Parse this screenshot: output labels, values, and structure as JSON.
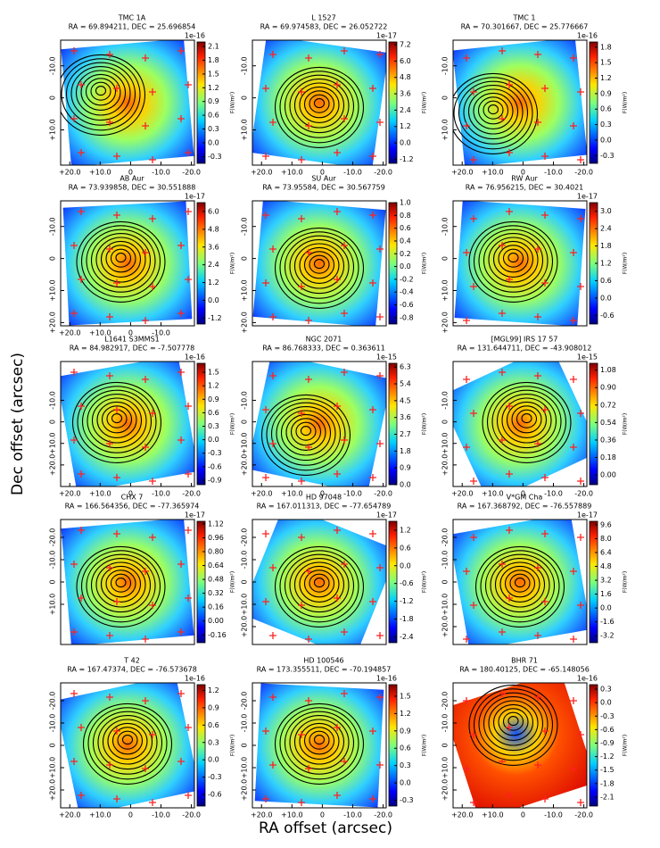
{
  "figure": {
    "xlabel": "RA offset (arcsec)",
    "ylabel": "Dec offset (arcsec)"
  },
  "chart_data": [
    {
      "type": "contour",
      "title": "TMC 1A",
      "subtitle": "RA = 69.894211, DEC = 25.696854",
      "cbar_label": "F(W/m²)",
      "cbar_multiplier": "1e-16",
      "clim": [
        -0.45,
        2.2
      ],
      "cticks": [
        2.1,
        1.8,
        1.5,
        1.2,
        0.9,
        0.6,
        0.3,
        {
          "value": 0,
          "label": "0.0"
        },
        -0.3
      ],
      "xlim": [
        23,
        -21
      ],
      "ylim": [
        -18,
        21
      ],
      "xticks": [
        {
          "value": 20,
          "label": "+20.0"
        },
        {
          "value": 10,
          "label": "+10.0"
        },
        0,
        {
          "value": -10,
          "label": "-10.0"
        },
        {
          "value": -20,
          "label": "-20.0"
        }
      ],
      "yticks": [
        {
          "value": -10,
          "label": "-10.0"
        },
        0,
        {
          "value": 10,
          "label": "+10.0"
        }
      ]
    },
    {
      "type": "contour",
      "title": "L 1527",
      "subtitle": "RA = 69.974583, DEC = 26.052722",
      "cbar_label": "F(W/m²)",
      "cbar_multiplier": "1e-17",
      "clim": [
        -1.5,
        7.4
      ],
      "cticks": [
        7.2,
        {
          "value": 6,
          "label": "6.0"
        },
        4.8,
        3.6,
        2.4,
        1.2,
        {
          "value": 0,
          "label": "0.0"
        },
        -1.2
      ],
      "xlim": [
        23,
        -21
      ],
      "ylim": [
        -18,
        21
      ],
      "xticks": [
        {
          "value": 20,
          "label": "+20.0"
        },
        {
          "value": 10,
          "label": "+10.0"
        },
        0,
        {
          "value": -10,
          "label": "-10.0"
        },
        {
          "value": -20,
          "label": "-20.0"
        }
      ],
      "yticks": [
        {
          "value": -10,
          "label": "-10.0"
        },
        0,
        {
          "value": 10,
          "label": "+10.0"
        }
      ]
    },
    {
      "type": "contour",
      "title": "TMC 1",
      "subtitle": "RA = 70.301667, DEC = 25.776667",
      "cbar_label": "F(W/m²)",
      "cbar_multiplier": "1e-16",
      "clim": [
        -0.45,
        1.9
      ],
      "cticks": [
        1.8,
        1.5,
        1.2,
        0.9,
        0.6,
        0.3,
        {
          "value": 0,
          "label": "0.0"
        },
        -0.3
      ],
      "xlim": [
        23,
        -21
      ],
      "ylim": [
        -18,
        21
      ],
      "xticks": [
        {
          "value": 20,
          "label": "+20.0"
        },
        {
          "value": 10,
          "label": "+10.0"
        },
        0,
        {
          "value": -10,
          "label": "-10.0"
        },
        {
          "value": -20,
          "label": "-20.0"
        }
      ],
      "yticks": [
        {
          "value": -10,
          "label": "-10.0"
        },
        0,
        {
          "value": 10,
          "label": "+10.0"
        }
      ]
    },
    {
      "type": "contour",
      "title": "AB Aur",
      "subtitle": "RA = 73.939858, DEC = 30.551888",
      "cbar_label": "F(W/m²)",
      "cbar_multiplier": "1e-17",
      "clim": [
        -1.6,
        6.6
      ],
      "cticks": [
        {
          "value": 6,
          "label": "6.0"
        },
        4.8,
        3.6,
        2.4,
        1.2,
        {
          "value": 0,
          "label": "0.0"
        },
        -1.2
      ],
      "xlim": [
        23,
        -21
      ],
      "ylim": [
        -18,
        21
      ],
      "xticks": [
        {
          "value": 20,
          "label": "+20.0"
        },
        {
          "value": 10,
          "label": "+10.0"
        },
        0,
        {
          "value": -10,
          "label": "-10.0"
        }
      ],
      "yticks": [
        {
          "value": -10,
          "label": "-10.0"
        },
        0,
        {
          "value": 10,
          "label": "+10.0"
        },
        {
          "value": 20,
          "label": "+20.0"
        }
      ]
    },
    {
      "type": "contour",
      "title": "SU Aur",
      "subtitle": "RA = 73.95584, DEC = 30.567759",
      "cbar_label": "F(W/m²)",
      "clim": [
        -0.9,
        1.0
      ],
      "cticks": [
        {
          "value": 1,
          "label": "1.0"
        },
        0.8,
        0.6,
        0.4,
        0.2,
        {
          "value": 0,
          "label": "0.0"
        },
        -0.2,
        -0.4,
        -0.6,
        -0.8
      ],
      "xlim": [
        23,
        -21
      ],
      "ylim": [
        -18,
        21
      ],
      "xticks": [],
      "yticks": [
        {
          "value": -10,
          "label": "-10.0"
        },
        0,
        {
          "value": 10,
          "label": "+10.0"
        },
        {
          "value": 20,
          "label": "+20.0"
        }
      ]
    },
    {
      "type": "contour",
      "title": "RW Aur",
      "subtitle": "RA = 76.956215, DEC = 30.4021",
      "cbar_label": "F(W/m²)",
      "cbar_multiplier": "1e-17",
      "clim": [
        -0.9,
        3.3
      ],
      "cticks": [
        {
          "value": 3,
          "label": "3.0"
        },
        2.4,
        1.8,
        1.2,
        0.6,
        {
          "value": 0,
          "label": "0.0"
        },
        -0.6
      ],
      "xlim": [
        23,
        -21
      ],
      "ylim": [
        -18,
        21
      ],
      "xticks": [],
      "yticks": [
        {
          "value": -10,
          "label": "-10.0"
        },
        0,
        {
          "value": 10,
          "label": "+10.0"
        },
        {
          "value": 20,
          "label": "+20.0"
        }
      ]
    },
    {
      "type": "contour",
      "title": "L1641 S3MMS1",
      "subtitle": "RA = 84.982917, DEC = -7.507778",
      "cbar_label": "F(W/m²)",
      "cbar_multiplier": "1e-16",
      "clim": [
        -1.0,
        1.7
      ],
      "cticks": [
        1.5,
        1.2,
        0.9,
        0.6,
        0.3,
        {
          "value": 0,
          "label": "0.0"
        },
        -0.3,
        -0.6,
        -0.9
      ],
      "xlim": [
        23,
        -21
      ],
      "ylim": [
        -28,
        30
      ],
      "xticks": [
        {
          "value": 20,
          "label": "+20.0"
        },
        {
          "value": 10,
          "label": "+10.0"
        },
        0,
        {
          "value": -10,
          "label": "-10.0"
        },
        {
          "value": -20,
          "label": "-20.0"
        }
      ],
      "yticks": [
        {
          "value": -10,
          "label": "-10.0"
        },
        0,
        {
          "value": 10,
          "label": "+10.0"
        },
        {
          "value": 20,
          "label": "+20.0"
        }
      ]
    },
    {
      "type": "contour",
      "title": "NGC 2071",
      "subtitle": "RA = 86.768333, DEC = 0.363611",
      "cbar_label": "F(W/m²)",
      "cbar_multiplier": "1e-15",
      "clim": [
        0,
        6.5
      ],
      "cticks": [
        6.3,
        5.4,
        4.5,
        3.6,
        2.7,
        1.8,
        0.9,
        {
          "value": 0,
          "label": "0.0"
        }
      ],
      "xlim": [
        23,
        -21
      ],
      "ylim": [
        -28,
        30
      ],
      "xticks": [
        {
          "value": 20,
          "label": "+20.0"
        },
        {
          "value": 10,
          "label": "+10.0"
        },
        0,
        {
          "value": -10,
          "label": "-10.0"
        },
        {
          "value": -20,
          "label": "-20.0"
        }
      ],
      "yticks": [
        {
          "value": -10,
          "label": "-10.0"
        },
        0,
        {
          "value": 10,
          "label": "+10.0"
        },
        {
          "value": 20,
          "label": "+20.0"
        }
      ]
    },
    {
      "type": "contour",
      "title": "[MGL99] IRS 17 57",
      "subtitle": "RA = 131.644711, DEC = -43.908012",
      "cbar_label": "F(W/m²)",
      "cbar_multiplier": "1e-15",
      "clim": [
        -0.1,
        1.15
      ],
      "cticks": [
        1.08,
        {
          "value": 0.9,
          "label": "0.90"
        },
        0.72,
        0.54,
        0.36,
        0.18,
        {
          "value": 0,
          "label": "0.00"
        }
      ],
      "xlim": [
        23,
        -21
      ],
      "ylim": [
        -28,
        30
      ],
      "xticks": [
        {
          "value": 20,
          "label": "+20.0"
        },
        {
          "value": 10,
          "label": "+10.0"
        },
        0,
        {
          "value": -10,
          "label": "-10.0"
        },
        {
          "value": -20,
          "label": "-20.0"
        }
      ],
      "yticks": [
        {
          "value": -10,
          "label": "-10.0"
        },
        0,
        {
          "value": 10,
          "label": "+10.0"
        },
        {
          "value": 20,
          "label": "+20.0"
        }
      ]
    },
    {
      "type": "contour",
      "title": "CHX 7",
      "subtitle": "RA = 166.564356, DEC = -77.365974",
      "cbar_label": "F(W/m²)",
      "cbar_multiplier": "1e-17",
      "clim": [
        -0.25,
        1.15
      ],
      "cticks": [
        1.12,
        0.96,
        {
          "value": 0.8,
          "label": "0.80"
        },
        0.64,
        0.48,
        0.32,
        0.16,
        {
          "value": 0,
          "label": "0.00"
        },
        -0.16
      ],
      "xlim": [
        23,
        -21
      ],
      "ylim": [
        -28,
        28
      ],
      "xticks": [],
      "yticks": [
        {
          "value": -20,
          "label": "-20.0"
        },
        {
          "value": -10,
          "label": "-10.0"
        },
        0,
        {
          "value": 10,
          "label": "+10.0"
        }
      ]
    },
    {
      "type": "contour",
      "title": "HD 97048",
      "subtitle": "RA = 167.011313, DEC = -77.654789",
      "cbar_label": "F(W/m²)",
      "cbar_multiplier": "1e-17",
      "clim": [
        -2.6,
        1.5
      ],
      "cticks": [
        1.2,
        0.6,
        {
          "value": 0,
          "label": "0.0"
        },
        -0.6,
        -1.2,
        -1.8,
        -2.4
      ],
      "xlim": [
        23,
        -21
      ],
      "ylim": [
        -28,
        28
      ],
      "xticks": [],
      "yticks": [
        {
          "value": -20,
          "label": "-20.0"
        },
        {
          "value": -10,
          "label": "-10.0"
        },
        0,
        {
          "value": 10,
          "label": "+10.0"
        },
        {
          "value": 20,
          "label": "+20.0"
        }
      ]
    },
    {
      "type": "contour",
      "title": "V*GM Cha",
      "subtitle": "RA = 167.368792, DEC = -76.557889",
      "cbar_label": "F(W/m²)",
      "cbar_multiplier": "1e-17",
      "clim": [
        -4.0,
        10.0
      ],
      "cticks": [
        9.6,
        {
          "value": 8,
          "label": "8.0"
        },
        6.4,
        4.8,
        3.2,
        1.6,
        {
          "value": 0,
          "label": "0.0"
        },
        -1.6,
        -3.2
      ],
      "xlim": [
        23,
        -21
      ],
      "ylim": [
        -28,
        28
      ],
      "xticks": [],
      "yticks": [
        {
          "value": -20,
          "label": "-20.0"
        },
        {
          "value": -10,
          "label": "-10.0"
        },
        0,
        {
          "value": 10,
          "label": "+10.0"
        },
        {
          "value": 20,
          "label": "+20.0"
        }
      ]
    },
    {
      "type": "contour",
      "title": "T 42",
      "subtitle": "RA = 167.47374, DEC = -76.573678",
      "cbar_label": "F(W/m²)",
      "cbar_multiplier": "1e-16",
      "clim": [
        -0.8,
        1.3
      ],
      "cticks": [
        1.2,
        0.9,
        0.6,
        0.3,
        {
          "value": 0,
          "label": "0.0"
        },
        -0.3,
        -0.6
      ],
      "xlim": [
        23,
        -21
      ],
      "ylim": [
        -28,
        28
      ],
      "xticks": [
        {
          "value": 20,
          "label": "+20.0"
        },
        {
          "value": 10,
          "label": "+10.0"
        },
        0,
        {
          "value": -10,
          "label": "-10.0"
        },
        {
          "value": -20,
          "label": "-20.0"
        }
      ],
      "yticks": [
        {
          "value": -20,
          "label": "-20.0"
        },
        {
          "value": -10,
          "label": "-10.0"
        },
        0,
        {
          "value": 10,
          "label": "+10.0"
        },
        {
          "value": 20,
          "label": "+20.0"
        }
      ]
    },
    {
      "type": "contour",
      "title": "HD 100546",
      "subtitle": "RA = 173.355511, DEC = -70.194857",
      "cbar_label": "F(W/m²)",
      "cbar_multiplier": "1e-16",
      "clim": [
        -0.4,
        1.7
      ],
      "cticks": [
        1.5,
        1.2,
        0.9,
        0.6,
        0.3,
        {
          "value": 0,
          "label": "0.0"
        },
        -0.3
      ],
      "xlim": [
        23,
        -21
      ],
      "ylim": [
        -28,
        28
      ],
      "xticks": [
        {
          "value": 20,
          "label": "+20.0"
        },
        {
          "value": 10,
          "label": "+10.0"
        },
        0,
        {
          "value": -10,
          "label": "-10.0"
        },
        {
          "value": -20,
          "label": "-20.0"
        }
      ],
      "yticks": [
        {
          "value": -20,
          "label": "-20.0"
        },
        {
          "value": -10,
          "label": "-10.0"
        },
        0,
        {
          "value": 10,
          "label": "+10.0"
        },
        {
          "value": 20,
          "label": "+20.0"
        }
      ]
    },
    {
      "type": "contour",
      "title": "BHR 71",
      "subtitle": "RA = 180.40125, DEC = -65.148056",
      "cbar_label": "F(W/m²)",
      "cbar_multiplier": "1e-16",
      "clim": [
        -2.3,
        0.4
      ],
      "cticks": [
        0.3,
        {
          "value": 0,
          "label": "0.0"
        },
        -0.3,
        -0.6,
        -0.9,
        -1.2,
        -1.5,
        -1.8,
        -2.1
      ],
      "xlim": [
        23,
        -21
      ],
      "ylim": [
        -28,
        28
      ],
      "xticks": [
        {
          "value": 20,
          "label": "+20.0"
        },
        {
          "value": 10,
          "label": "+10.0"
        },
        0,
        {
          "value": -10,
          "label": "-10.0"
        },
        {
          "value": -20,
          "label": "-20.0"
        }
      ],
      "yticks": [
        {
          "value": -20,
          "label": "-20.0"
        },
        {
          "value": -10,
          "label": "-10.0"
        },
        0,
        {
          "value": 10,
          "label": "+10.0"
        },
        {
          "value": 20,
          "label": "+20.0"
        }
      ]
    }
  ]
}
